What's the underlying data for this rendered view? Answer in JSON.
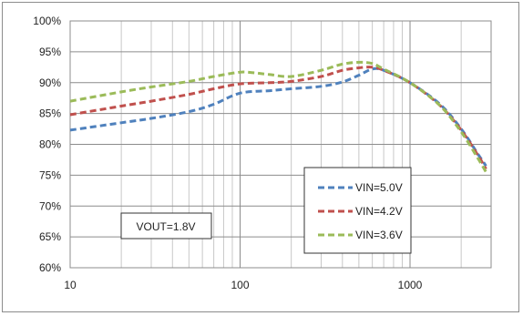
{
  "chart_data": {
    "type": "line",
    "title": "",
    "xlabel": "",
    "ylabel": "",
    "x_scale": "log",
    "xlim": [
      10,
      3000
    ],
    "ylim": [
      60,
      100
    ],
    "x_ticks": [
      "10",
      "100",
      "1000"
    ],
    "y_ticks": [
      "60%",
      "65%",
      "70%",
      "75%",
      "80%",
      "85%",
      "90%",
      "95%",
      "100%"
    ],
    "grid": true,
    "legend_position": "lower-right",
    "annotation": "VOUT=1.8V",
    "series": [
      {
        "name": "VIN=5.0V",
        "color": "#4f81bd",
        "line_style": "dashed",
        "x": [
          10,
          20,
          30,
          50,
          70,
          100,
          150,
          200,
          300,
          400,
          500,
          600,
          700,
          1000,
          1500,
          2000,
          2500,
          2800
        ],
        "y": [
          82.3,
          83.5,
          84.2,
          85.3,
          86.5,
          88.3,
          88.7,
          89.0,
          89.4,
          90.1,
          91.2,
          92.2,
          92.0,
          90.0,
          86.5,
          82.5,
          78.5,
          76.5
        ]
      },
      {
        "name": "VIN=4.2V",
        "color": "#c0504d",
        "line_style": "dashed",
        "x": [
          10,
          20,
          30,
          50,
          70,
          100,
          150,
          200,
          300,
          400,
          500,
          600,
          700,
          1000,
          1500,
          2000,
          2500,
          2800
        ],
        "y": [
          84.8,
          86.2,
          87.0,
          88.1,
          89.0,
          89.8,
          90.0,
          90.2,
          91.0,
          92.0,
          92.4,
          92.5,
          92.0,
          90.0,
          86.3,
          82.3,
          78.3,
          76.0
        ]
      },
      {
        "name": "VIN=3.6V",
        "color": "#9bbb59",
        "line_style": "dashed",
        "x": [
          10,
          20,
          30,
          50,
          70,
          100,
          120,
          150,
          200,
          300,
          400,
          500,
          600,
          700,
          1000,
          1500,
          2000,
          2500,
          2800
        ],
        "y": [
          87.0,
          88.5,
          89.3,
          90.2,
          91.0,
          91.7,
          91.6,
          91.3,
          91.0,
          92.0,
          93.0,
          93.3,
          93.1,
          92.2,
          90.0,
          86.3,
          82.0,
          77.8,
          75.5
        ]
      }
    ]
  }
}
